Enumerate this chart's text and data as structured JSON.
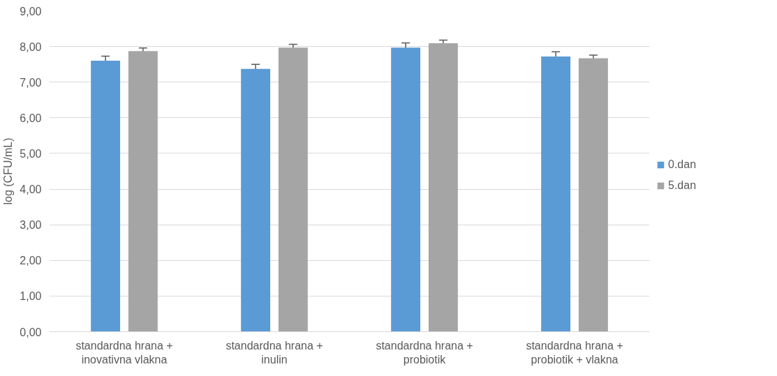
{
  "chart_data": {
    "type": "bar",
    "ylabel": "log (CFU/mL)",
    "categories": [
      "standardna hrana + inovativna vlakna",
      "standardna hrana + inulin",
      "standardna hrana + probiotik",
      "standardna hrana + probiotik + vlakna"
    ],
    "series": [
      {
        "name": "0.dan",
        "color": "#5b9bd5",
        "values": [
          7.6,
          7.37,
          7.97,
          7.72
        ],
        "errors": [
          0.13,
          0.13,
          0.13,
          0.13
        ]
      },
      {
        "name": "5.dan",
        "color": "#a5a5a5",
        "values": [
          7.87,
          7.97,
          8.09,
          7.67
        ],
        "errors": [
          0.09,
          0.09,
          0.09,
          0.09
        ]
      }
    ],
    "ylim": [
      0,
      9
    ],
    "yticks": [
      {
        "value": 0,
        "label": "0,00"
      },
      {
        "value": 1,
        "label": "1,00"
      },
      {
        "value": 2,
        "label": "2,00"
      },
      {
        "value": 3,
        "label": "3,00"
      },
      {
        "value": 4,
        "label": "4,00"
      },
      {
        "value": 5,
        "label": "5,00"
      },
      {
        "value": 6,
        "label": "6,00"
      },
      {
        "value": 7,
        "label": "7,00"
      },
      {
        "value": 8,
        "label": "8,00"
      },
      {
        "value": 9,
        "label": "9,00"
      }
    ],
    "grid": "y",
    "legend": "right"
  }
}
